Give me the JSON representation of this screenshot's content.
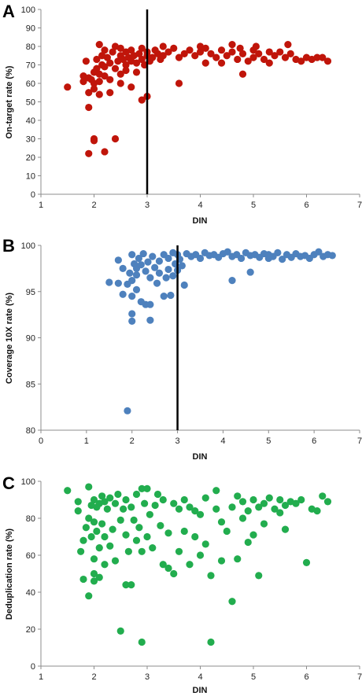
{
  "chart_data": [
    {
      "type": "scatter",
      "panel": "A",
      "xlabel": "DIN",
      "ylabel": "On-target rate (%)",
      "xlim": [
        1,
        7
      ],
      "ylim": [
        0,
        100
      ],
      "xticks": [
        1,
        2,
        3,
        4,
        5,
        6,
        7
      ],
      "yticks": [
        0,
        10,
        20,
        30,
        40,
        50,
        60,
        70,
        80,
        90,
        100
      ],
      "color": "#c0150a",
      "threshold_x": 3,
      "grid": false,
      "legend": "none",
      "points": [
        [
          1.5,
          58
        ],
        [
          1.8,
          61
        ],
        [
          1.8,
          64
        ],
        [
          1.85,
          72
        ],
        [
          1.9,
          63
        ],
        [
          1.9,
          55
        ],
        [
          1.9,
          47
        ],
        [
          1.9,
          22
        ],
        [
          1.95,
          62
        ],
        [
          2.0,
          60
        ],
        [
          2.0,
          66
        ],
        [
          2.0,
          57
        ],
        [
          2.0,
          30
        ],
        [
          2.0,
          29
        ],
        [
          2.05,
          73
        ],
        [
          2.05,
          68
        ],
        [
          2.1,
          65
        ],
        [
          2.1,
          61
        ],
        [
          2.1,
          81
        ],
        [
          2.1,
          54
        ],
        [
          2.15,
          70
        ],
        [
          2.15,
          75
        ],
        [
          2.2,
          69
        ],
        [
          2.2,
          64
        ],
        [
          2.2,
          78
        ],
        [
          2.2,
          23
        ],
        [
          2.25,
          74
        ],
        [
          2.3,
          71
        ],
        [
          2.3,
          62
        ],
        [
          2.3,
          55
        ],
        [
          2.35,
          77
        ],
        [
          2.4,
          80
        ],
        [
          2.4,
          68
        ],
        [
          2.4,
          30
        ],
        [
          2.45,
          72
        ],
        [
          2.5,
          75
        ],
        [
          2.5,
          65
        ],
        [
          2.5,
          79
        ],
        [
          2.5,
          60
        ],
        [
          2.55,
          73
        ],
        [
          2.6,
          70
        ],
        [
          2.6,
          77
        ],
        [
          2.6,
          67
        ],
        [
          2.65,
          74
        ],
        [
          2.7,
          72
        ],
        [
          2.7,
          78
        ],
        [
          2.7,
          58
        ],
        [
          2.75,
          75
        ],
        [
          2.8,
          71
        ],
        [
          2.8,
          66
        ],
        [
          2.85,
          76
        ],
        [
          2.9,
          73
        ],
        [
          2.9,
          79
        ],
        [
          2.9,
          51
        ],
        [
          2.95,
          70
        ],
        [
          3.0,
          75
        ],
        [
          3.0,
          77
        ],
        [
          3.0,
          53
        ],
        [
          3.05,
          72
        ],
        [
          3.1,
          74
        ],
        [
          3.15,
          78
        ],
        [
          3.2,
          76
        ],
        [
          3.25,
          73
        ],
        [
          3.3,
          80
        ],
        [
          3.3,
          75
        ],
        [
          3.4,
          77
        ],
        [
          3.5,
          79
        ],
        [
          3.6,
          60
        ],
        [
          3.6,
          74
        ],
        [
          3.7,
          76
        ],
        [
          3.8,
          78
        ],
        [
          3.9,
          75
        ],
        [
          4.0,
          77
        ],
        [
          4.0,
          80
        ],
        [
          4.1,
          71
        ],
        [
          4.1,
          79
        ],
        [
          4.2,
          76
        ],
        [
          4.3,
          74
        ],
        [
          4.4,
          78
        ],
        [
          4.4,
          71
        ],
        [
          4.5,
          75
        ],
        [
          4.6,
          77
        ],
        [
          4.6,
          81
        ],
        [
          4.7,
          73
        ],
        [
          4.75,
          79
        ],
        [
          4.8,
          65
        ],
        [
          4.8,
          76
        ],
        [
          4.9,
          72
        ],
        [
          5.0,
          78
        ],
        [
          5.0,
          74
        ],
        [
          5.05,
          80
        ],
        [
          5.1,
          76
        ],
        [
          5.2,
          73
        ],
        [
          5.3,
          77
        ],
        [
          5.3,
          71
        ],
        [
          5.4,
          75
        ],
        [
          5.5,
          77
        ],
        [
          5.6,
          74
        ],
        [
          5.65,
          81
        ],
        [
          5.7,
          76
        ],
        [
          5.8,
          73
        ],
        [
          5.9,
          72
        ],
        [
          6.0,
          74
        ],
        [
          6.1,
          73
        ],
        [
          6.2,
          74
        ],
        [
          6.3,
          74
        ],
        [
          6.4,
          72
        ]
      ]
    },
    {
      "type": "scatter",
      "panel": "B",
      "xlabel": "DIN",
      "ylabel": "Coverage 10X rate (%)",
      "xlim": [
        0,
        7
      ],
      "ylim": [
        80,
        100
      ],
      "xticks": [
        0,
        1,
        2,
        3,
        4,
        5,
        6,
        7
      ],
      "yticks": [
        80,
        85,
        90,
        95,
        100
      ],
      "color": "#4e81bd",
      "threshold_x": 3,
      "grid": false,
      "legend": "none",
      "points": [
        [
          1.5,
          96.0
        ],
        [
          1.7,
          98.4
        ],
        [
          1.7,
          95.9
        ],
        [
          1.8,
          97.5
        ],
        [
          1.8,
          94.7
        ],
        [
          1.9,
          95.8
        ],
        [
          1.9,
          82.1
        ],
        [
          1.95,
          97.0
        ],
        [
          2.0,
          92.6
        ],
        [
          2.0,
          91.8
        ],
        [
          2.0,
          94.5
        ],
        [
          2.0,
          96.2
        ],
        [
          2.0,
          99.0
        ],
        [
          2.05,
          98.0
        ],
        [
          2.1,
          97.5
        ],
        [
          2.1,
          96.8
        ],
        [
          2.1,
          95.2
        ],
        [
          2.15,
          98.6
        ],
        [
          2.2,
          97.9
        ],
        [
          2.2,
          93.9
        ],
        [
          2.25,
          99.1
        ],
        [
          2.3,
          97.2
        ],
        [
          2.3,
          93.6
        ],
        [
          2.35,
          98.2
        ],
        [
          2.4,
          96.5
        ],
        [
          2.4,
          91.9
        ],
        [
          2.4,
          93.6
        ],
        [
          2.45,
          98.8
        ],
        [
          2.5,
          97.6
        ],
        [
          2.55,
          95.9
        ],
        [
          2.6,
          98.3
        ],
        [
          2.6,
          97.0
        ],
        [
          2.7,
          99.0
        ],
        [
          2.7,
          94.5
        ],
        [
          2.75,
          96.5
        ],
        [
          2.8,
          98.6
        ],
        [
          2.8,
          97.4
        ],
        [
          2.85,
          94.6
        ],
        [
          2.9,
          99.2
        ],
        [
          2.9,
          96.7
        ],
        [
          2.95,
          98.0
        ],
        [
          3.0,
          99.0
        ],
        [
          3.0,
          97.3
        ],
        [
          3.05,
          98.5
        ],
        [
          3.1,
          97.8
        ],
        [
          3.15,
          95.7
        ],
        [
          3.2,
          99.1
        ],
        [
          3.3,
          98.8
        ],
        [
          3.4,
          99.0
        ],
        [
          3.5,
          98.6
        ],
        [
          3.6,
          99.2
        ],
        [
          3.7,
          98.9
        ],
        [
          3.8,
          99.0
        ],
        [
          3.9,
          98.7
        ],
        [
          4.0,
          99.1
        ],
        [
          4.1,
          99.3
        ],
        [
          4.2,
          98.8
        ],
        [
          4.2,
          96.2
        ],
        [
          4.3,
          99.0
        ],
        [
          4.4,
          98.6
        ],
        [
          4.5,
          99.2
        ],
        [
          4.6,
          97.1
        ],
        [
          4.6,
          98.9
        ],
        [
          4.7,
          99.0
        ],
        [
          4.8,
          98.7
        ],
        [
          4.9,
          99.1
        ],
        [
          5.0,
          98.6
        ],
        [
          5.0,
          99.0
        ],
        [
          5.1,
          98.8
        ],
        [
          5.2,
          99.2
        ],
        [
          5.3,
          98.5
        ],
        [
          5.4,
          99.0
        ],
        [
          5.5,
          98.7
        ],
        [
          5.6,
          99.1
        ],
        [
          5.7,
          98.8
        ],
        [
          5.8,
          98.9
        ],
        [
          5.9,
          98.6
        ],
        [
          6.0,
          99.0
        ],
        [
          6.1,
          99.3
        ],
        [
          6.2,
          98.8
        ],
        [
          6.3,
          99.0
        ],
        [
          6.4,
          98.9
        ]
      ]
    },
    {
      "type": "scatter",
      "panel": "C",
      "xlabel": "DIN",
      "ylabel": "Deduplication rate (%)",
      "xlim": [
        1,
        7
      ],
      "ylim": [
        0,
        100
      ],
      "xticks": [
        1,
        2,
        3,
        4,
        5,
        6,
        7
      ],
      "yticks": [
        0,
        20,
        40,
        60,
        80,
        100
      ],
      "color": "#22ad4e",
      "threshold_x": null,
      "grid": false,
      "legend": "none",
      "points": [
        [
          1.5,
          95
        ],
        [
          1.7,
          89
        ],
        [
          1.7,
          84
        ],
        [
          1.75,
          62
        ],
        [
          1.8,
          68
        ],
        [
          1.8,
          47
        ],
        [
          1.85,
          75
        ],
        [
          1.9,
          97
        ],
        [
          1.9,
          80
        ],
        [
          1.9,
          38
        ],
        [
          1.95,
          87
        ],
        [
          1.95,
          70
        ],
        [
          2.0,
          90
        ],
        [
          2.0,
          78
        ],
        [
          2.0,
          58
        ],
        [
          2.0,
          50
        ],
        [
          2.0,
          46
        ],
        [
          2.05,
          86
        ],
        [
          2.05,
          73
        ],
        [
          2.1,
          88
        ],
        [
          2.1,
          64
        ],
        [
          2.1,
          48
        ],
        [
          2.15,
          92
        ],
        [
          2.15,
          77
        ],
        [
          2.2,
          89
        ],
        [
          2.2,
          70
        ],
        [
          2.2,
          55
        ],
        [
          2.25,
          85
        ],
        [
          2.3,
          91
        ],
        [
          2.3,
          65
        ],
        [
          2.35,
          74
        ],
        [
          2.4,
          88
        ],
        [
          2.4,
          57
        ],
        [
          2.45,
          93
        ],
        [
          2.5,
          79
        ],
        [
          2.5,
          19
        ],
        [
          2.55,
          85
        ],
        [
          2.6,
          90
        ],
        [
          2.6,
          71
        ],
        [
          2.6,
          44
        ],
        [
          2.65,
          62
        ],
        [
          2.7,
          86
        ],
        [
          2.7,
          44
        ],
        [
          2.75,
          79
        ],
        [
          2.8,
          93
        ],
        [
          2.8,
          68
        ],
        [
          2.85,
          75
        ],
        [
          2.9,
          96
        ],
        [
          2.9,
          62
        ],
        [
          2.9,
          13
        ],
        [
          2.95,
          88
        ],
        [
          3.0,
          96
        ],
        [
          3.0,
          70
        ],
        [
          3.05,
          82
        ],
        [
          3.1,
          64
        ],
        [
          3.15,
          87
        ],
        [
          3.2,
          93
        ],
        [
          3.25,
          76
        ],
        [
          3.3,
          90
        ],
        [
          3.3,
          55
        ],
        [
          3.4,
          72
        ],
        [
          3.4,
          53
        ],
        [
          3.5,
          88
        ],
        [
          3.5,
          50
        ],
        [
          3.6,
          85
        ],
        [
          3.6,
          62
        ],
        [
          3.7,
          90
        ],
        [
          3.7,
          73
        ],
        [
          3.8,
          86
        ],
        [
          3.8,
          55
        ],
        [
          3.9,
          84
        ],
        [
          3.9,
          70
        ],
        [
          4.0,
          82
        ],
        [
          4.0,
          60
        ],
        [
          4.1,
          91
        ],
        [
          4.1,
          66
        ],
        [
          4.2,
          49
        ],
        [
          4.2,
          13
        ],
        [
          4.3,
          95
        ],
        [
          4.3,
          85
        ],
        [
          4.4,
          78
        ],
        [
          4.4,
          57
        ],
        [
          4.5,
          73
        ],
        [
          4.6,
          86
        ],
        [
          4.6,
          35
        ],
        [
          4.7,
          92
        ],
        [
          4.7,
          58
        ],
        [
          4.8,
          89
        ],
        [
          4.8,
          80
        ],
        [
          4.9,
          84
        ],
        [
          4.9,
          67
        ],
        [
          5.0,
          90
        ],
        [
          5.0,
          71
        ],
        [
          5.1,
          86
        ],
        [
          5.1,
          49
        ],
        [
          5.2,
          88
        ],
        [
          5.2,
          77
        ],
        [
          5.3,
          91
        ],
        [
          5.4,
          85
        ],
        [
          5.5,
          90
        ],
        [
          5.5,
          83
        ],
        [
          5.6,
          87
        ],
        [
          5.6,
          74
        ],
        [
          5.7,
          89
        ],
        [
          5.8,
          88
        ],
        [
          5.9,
          90
        ],
        [
          6.0,
          56
        ],
        [
          6.1,
          85
        ],
        [
          6.2,
          84
        ],
        [
          6.3,
          92
        ],
        [
          6.4,
          89
        ]
      ]
    }
  ]
}
